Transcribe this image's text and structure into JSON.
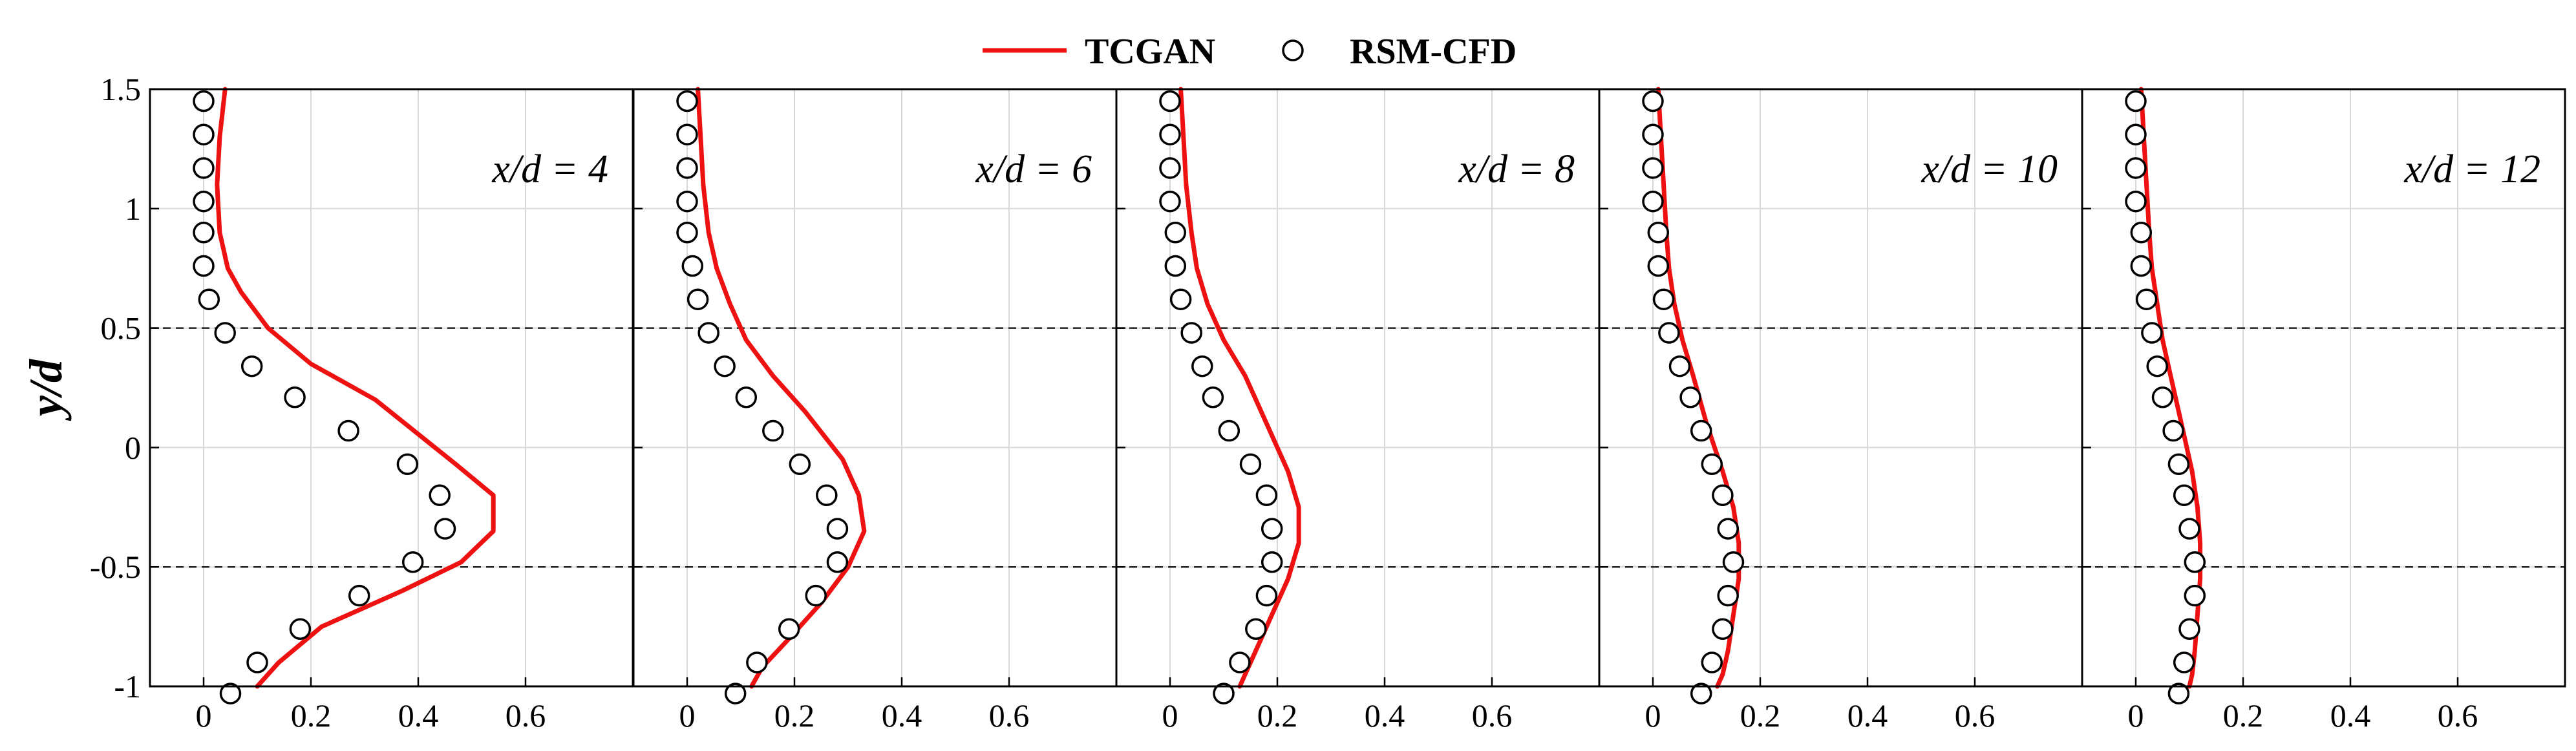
{
  "legend": {
    "items": [
      {
        "label": "TCGAN",
        "kind": "line",
        "color": "#ee1111"
      },
      {
        "label": "RSM-CFD",
        "kind": "circle",
        "color": "#000000"
      }
    ]
  },
  "chart_data": {
    "type": "line",
    "ylabel": "y/d",
    "xlabel": "",
    "xlim": [
      -0.1,
      0.8
    ],
    "ylim": [
      -1,
      1.5
    ],
    "xticks": [
      0,
      0.2,
      0.4,
      0.6
    ],
    "xtick_labels": [
      "0",
      "0.2",
      "0.4",
      "0.6"
    ],
    "yticks": [
      1.5,
      1,
      0.5,
      0,
      -0.5,
      -1
    ],
    "ytick_labels": [
      "1.5",
      "1",
      "0.5",
      "0",
      "-0.5",
      "-1"
    ],
    "reference_lines_y": [
      0.5,
      -0.5
    ],
    "grid": true,
    "legend_position": "top-center",
    "panels": [
      {
        "label": "x/d = 4",
        "series": [
          {
            "name": "TCGAN",
            "type": "line",
            "color": "#ee1111",
            "x": [
              0.04,
              0.03,
              0.025,
              0.03,
              0.045,
              0.07,
              0.12,
              0.2,
              0.32,
              0.47,
              0.54,
              0.54,
              0.48,
              0.37,
              0.22,
              0.14,
              0.1
            ],
            "y": [
              1.5,
              1.3,
              1.1,
              0.9,
              0.75,
              0.65,
              0.5,
              0.35,
              0.2,
              -0.07,
              -0.2,
              -0.35,
              -0.48,
              -0.6,
              -0.75,
              -0.9,
              -1.0
            ]
          },
          {
            "name": "RSM-CFD",
            "type": "scatter",
            "color": "#000000",
            "x": [
              0.0,
              0.0,
              0.0,
              0.0,
              0.0,
              0.0,
              0.01,
              0.04,
              0.09,
              0.17,
              0.27,
              0.38,
              0.44,
              0.45,
              0.39,
              0.29,
              0.18,
              0.1,
              0.05
            ],
            "y": [
              1.45,
              1.31,
              1.17,
              1.03,
              0.9,
              0.76,
              0.62,
              0.48,
              0.34,
              0.21,
              0.07,
              -0.07,
              -0.2,
              -0.34,
              -0.48,
              -0.62,
              -0.76,
              -0.9,
              -1.03
            ]
          }
        ]
      },
      {
        "label": "x/d = 6",
        "series": [
          {
            "name": "TCGAN",
            "type": "line",
            "color": "#ee1111",
            "x": [
              0.02,
              0.025,
              0.03,
              0.04,
              0.055,
              0.08,
              0.11,
              0.16,
              0.22,
              0.29,
              0.32,
              0.33,
              0.3,
              0.25,
              0.19,
              0.14,
              0.12
            ],
            "y": [
              1.5,
              1.3,
              1.1,
              0.9,
              0.75,
              0.6,
              0.45,
              0.3,
              0.15,
              -0.05,
              -0.2,
              -0.35,
              -0.5,
              -0.65,
              -0.8,
              -0.92,
              -1.0
            ]
          },
          {
            "name": "RSM-CFD",
            "type": "scatter",
            "color": "#000000",
            "x": [
              0.0,
              0.0,
              0.0,
              0.0,
              0.0,
              0.01,
              0.02,
              0.04,
              0.07,
              0.11,
              0.16,
              0.21,
              0.26,
              0.28,
              0.28,
              0.24,
              0.19,
              0.13,
              0.09
            ],
            "y": [
              1.45,
              1.31,
              1.17,
              1.03,
              0.9,
              0.76,
              0.62,
              0.48,
              0.34,
              0.21,
              0.07,
              -0.07,
              -0.2,
              -0.34,
              -0.48,
              -0.62,
              -0.76,
              -0.9,
              -1.03
            ]
          }
        ]
      },
      {
        "label": "x/d = 8",
        "series": [
          {
            "name": "TCGAN",
            "type": "line",
            "color": "#ee1111",
            "x": [
              0.02,
              0.025,
              0.03,
              0.04,
              0.05,
              0.07,
              0.1,
              0.14,
              0.18,
              0.22,
              0.24,
              0.24,
              0.22,
              0.19,
              0.16,
              0.14,
              0.13
            ],
            "y": [
              1.5,
              1.3,
              1.1,
              0.9,
              0.75,
              0.6,
              0.45,
              0.3,
              0.1,
              -0.1,
              -0.25,
              -0.4,
              -0.55,
              -0.7,
              -0.85,
              -0.95,
              -1.0
            ]
          },
          {
            "name": "RSM-CFD",
            "type": "scatter",
            "color": "#000000",
            "x": [
              0.0,
              0.0,
              0.0,
              0.0,
              0.01,
              0.01,
              0.02,
              0.04,
              0.06,
              0.08,
              0.11,
              0.15,
              0.18,
              0.19,
              0.19,
              0.18,
              0.16,
              0.13,
              0.1
            ],
            "y": [
              1.45,
              1.31,
              1.17,
              1.03,
              0.9,
              0.76,
              0.62,
              0.48,
              0.34,
              0.21,
              0.07,
              -0.07,
              -0.2,
              -0.34,
              -0.48,
              -0.62,
              -0.76,
              -0.9,
              -1.03
            ]
          }
        ]
      },
      {
        "label": "x/d = 10",
        "series": [
          {
            "name": "TCGAN",
            "type": "line",
            "color": "#ee1111",
            "x": [
              0.01,
              0.015,
              0.02,
              0.025,
              0.03,
              0.04,
              0.055,
              0.075,
              0.1,
              0.13,
              0.15,
              0.16,
              0.16,
              0.15,
              0.14,
              0.13,
              0.12
            ],
            "y": [
              1.5,
              1.3,
              1.1,
              0.9,
              0.75,
              0.6,
              0.45,
              0.3,
              0.1,
              -0.1,
              -0.25,
              -0.4,
              -0.55,
              -0.7,
              -0.85,
              -0.95,
              -1.0
            ]
          },
          {
            "name": "RSM-CFD",
            "type": "scatter",
            "color": "#000000",
            "x": [
              0.0,
              0.0,
              0.0,
              0.0,
              0.01,
              0.01,
              0.02,
              0.03,
              0.05,
              0.07,
              0.09,
              0.11,
              0.13,
              0.14,
              0.15,
              0.14,
              0.13,
              0.11,
              0.09
            ],
            "y": [
              1.45,
              1.31,
              1.17,
              1.03,
              0.9,
              0.76,
              0.62,
              0.48,
              0.34,
              0.21,
              0.07,
              -0.07,
              -0.2,
              -0.34,
              -0.48,
              -0.62,
              -0.76,
              -0.9,
              -1.03
            ]
          }
        ]
      },
      {
        "label": "x/d = 12",
        "series": [
          {
            "name": "TCGAN",
            "type": "line",
            "color": "#ee1111",
            "x": [
              0.01,
              0.015,
              0.02,
              0.025,
              0.03,
              0.04,
              0.05,
              0.065,
              0.085,
              0.105,
              0.115,
              0.12,
              0.12,
              0.115,
              0.11,
              0.105,
              0.1
            ],
            "y": [
              1.5,
              1.3,
              1.1,
              0.9,
              0.75,
              0.6,
              0.45,
              0.3,
              0.1,
              -0.1,
              -0.25,
              -0.4,
              -0.55,
              -0.7,
              -0.85,
              -0.95,
              -1.0
            ]
          },
          {
            "name": "RSM-CFD",
            "type": "scatter",
            "color": "#000000",
            "x": [
              0.0,
              0.0,
              0.0,
              0.0,
              0.01,
              0.01,
              0.02,
              0.03,
              0.04,
              0.05,
              0.07,
              0.08,
              0.09,
              0.1,
              0.11,
              0.11,
              0.1,
              0.09,
              0.08
            ],
            "y": [
              1.45,
              1.31,
              1.17,
              1.03,
              0.9,
              0.76,
              0.62,
              0.48,
              0.34,
              0.21,
              0.07,
              -0.07,
              -0.2,
              -0.34,
              -0.48,
              -0.62,
              -0.76,
              -0.9,
              -1.03
            ]
          }
        ]
      }
    ]
  }
}
